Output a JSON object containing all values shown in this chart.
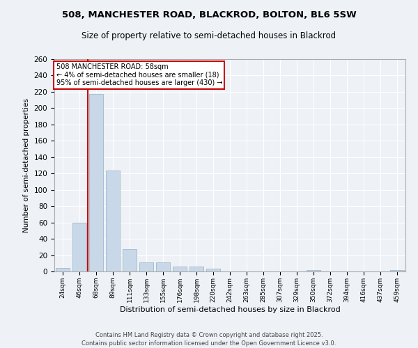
{
  "title_line1": "508, MANCHESTER ROAD, BLACKROD, BOLTON, BL6 5SW",
  "title_line2": "Size of property relative to semi-detached houses in Blackrod",
  "xlabel": "Distribution of semi-detached houses by size in Blackrod",
  "ylabel": "Number of semi-detached properties",
  "categories": [
    "24sqm",
    "46sqm",
    "68sqm",
    "89sqm",
    "111sqm",
    "133sqm",
    "155sqm",
    "176sqm",
    "198sqm",
    "220sqm",
    "242sqm",
    "263sqm",
    "285sqm",
    "307sqm",
    "329sqm",
    "350sqm",
    "372sqm",
    "394sqm",
    "416sqm",
    "437sqm",
    "459sqm"
  ],
  "values": [
    4,
    60,
    217,
    124,
    27,
    11,
    11,
    6,
    6,
    3,
    0,
    0,
    0,
    0,
    0,
    2,
    0,
    0,
    0,
    0,
    2
  ],
  "bar_color": "#c8d8e8",
  "bar_edgecolor": "#a0b8cc",
  "vline_x": 1.5,
  "vline_color": "#cc0000",
  "annotation_title": "508 MANCHESTER ROAD: 58sqm",
  "annotation_line1": "← 4% of semi-detached houses are smaller (18)",
  "annotation_line2": "95% of semi-detached houses are larger (430) →",
  "annotation_box_color": "#ffffff",
  "annotation_box_edgecolor": "#cc0000",
  "ylim": [
    0,
    260
  ],
  "yticks": [
    0,
    20,
    40,
    60,
    80,
    100,
    120,
    140,
    160,
    180,
    200,
    220,
    240,
    260
  ],
  "background_color": "#eef2f6",
  "grid_color": "#ffffff",
  "footer_line1": "Contains HM Land Registry data © Crown copyright and database right 2025.",
  "footer_line2": "Contains public sector information licensed under the Open Government Licence v3.0."
}
